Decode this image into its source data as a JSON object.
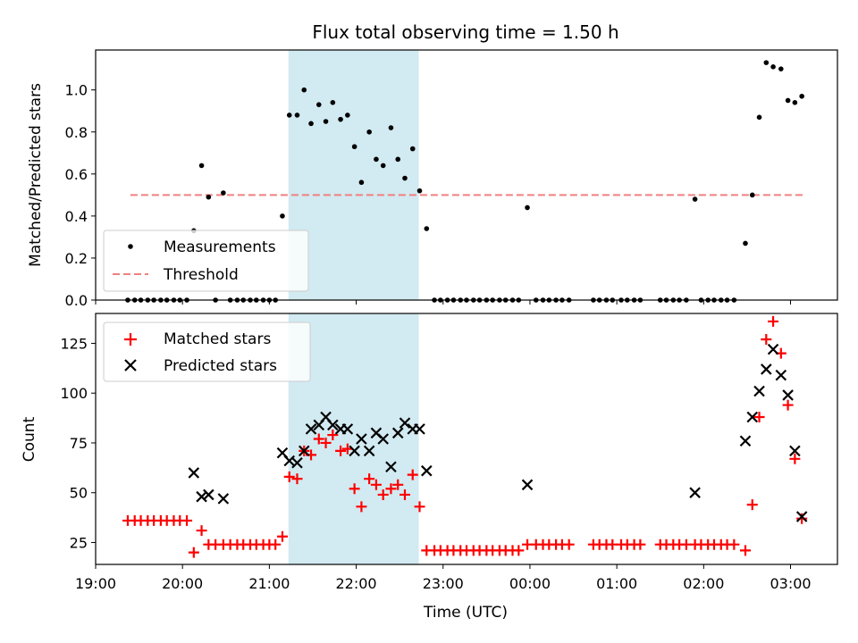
{
  "chart_data": [
    {
      "type": "scatter",
      "title": "Flux total observing time = 1.50 h",
      "ylabel": "Matched/Predicted stars",
      "xlabel": "",
      "ylim": [
        0,
        1.19
      ],
      "yticks": [
        "0.0",
        "0.2",
        "0.4",
        "0.6",
        "0.8",
        "1.0"
      ],
      "ytick_values": [
        0,
        0.2,
        0.4,
        0.6,
        0.8,
        1.0
      ],
      "xlim_hours": [
        19.0,
        27.54
      ],
      "shaded_interval_hours": [
        21.22,
        22.72
      ],
      "threshold": {
        "value": 0.5,
        "from_hours": 19.4,
        "to_hours": 27.15,
        "color": "#f08080"
      },
      "legend": [
        "Measurements",
        "Threshold"
      ],
      "legend_position": "lower-left",
      "series": [
        {
          "name": "Measurements",
          "color": "#000000",
          "points": [
            [
              19.37,
              0
            ],
            [
              19.45,
              0
            ],
            [
              19.52,
              0
            ],
            [
              19.6,
              0
            ],
            [
              19.67,
              0
            ],
            [
              19.75,
              0
            ],
            [
              19.82,
              0
            ],
            [
              19.9,
              0
            ],
            [
              19.97,
              0
            ],
            [
              20.05,
              0
            ],
            [
              20.13,
              0.33
            ],
            [
              20.22,
              0.64
            ],
            [
              20.3,
              0.49
            ],
            [
              20.38,
              0
            ],
            [
              20.47,
              0.51
            ],
            [
              20.55,
              0
            ],
            [
              20.63,
              0
            ],
            [
              20.7,
              0
            ],
            [
              20.78,
              0
            ],
            [
              20.85,
              0
            ],
            [
              20.93,
              0
            ],
            [
              21.0,
              0
            ],
            [
              21.07,
              0
            ],
            [
              21.15,
              0.4
            ],
            [
              21.23,
              0.88
            ],
            [
              21.32,
              0.88
            ],
            [
              21.4,
              1.0
            ],
            [
              21.48,
              0.84
            ],
            [
              21.57,
              0.93
            ],
            [
              21.65,
              0.85
            ],
            [
              21.73,
              0.94
            ],
            [
              21.82,
              0.86
            ],
            [
              21.9,
              0.88
            ],
            [
              21.98,
              0.73
            ],
            [
              22.06,
              0.56
            ],
            [
              22.15,
              0.8
            ],
            [
              22.23,
              0.67
            ],
            [
              22.31,
              0.64
            ],
            [
              22.4,
              0.82
            ],
            [
              22.48,
              0.67
            ],
            [
              22.56,
              0.58
            ],
            [
              22.65,
              0.72
            ],
            [
              22.73,
              0.52
            ],
            [
              22.81,
              0.34
            ],
            [
              22.9,
              0
            ],
            [
              22.97,
              0
            ],
            [
              23.05,
              0
            ],
            [
              23.12,
              0
            ],
            [
              23.2,
              0
            ],
            [
              23.27,
              0
            ],
            [
              23.35,
              0
            ],
            [
              23.42,
              0
            ],
            [
              23.5,
              0
            ],
            [
              23.57,
              0
            ],
            [
              23.65,
              0
            ],
            [
              23.72,
              0
            ],
            [
              23.8,
              0
            ],
            [
              23.87,
              0
            ],
            [
              23.97,
              0.44
            ],
            [
              24.07,
              0
            ],
            [
              24.15,
              0
            ],
            [
              24.22,
              0
            ],
            [
              24.3,
              0
            ],
            [
              24.37,
              0
            ],
            [
              24.45,
              0
            ],
            [
              24.73,
              0
            ],
            [
              24.8,
              0
            ],
            [
              24.88,
              0
            ],
            [
              24.95,
              0
            ],
            [
              25.05,
              0
            ],
            [
              25.12,
              0
            ],
            [
              25.2,
              0
            ],
            [
              25.27,
              0
            ],
            [
              25.5,
              0
            ],
            [
              25.57,
              0
            ],
            [
              25.65,
              0
            ],
            [
              25.72,
              0
            ],
            [
              25.8,
              0
            ],
            [
              25.9,
              0.48
            ],
            [
              25.97,
              0
            ],
            [
              26.05,
              0
            ],
            [
              26.12,
              0
            ],
            [
              26.2,
              0
            ],
            [
              26.27,
              0
            ],
            [
              26.35,
              0
            ],
            [
              26.48,
              0.27
            ],
            [
              26.56,
              0.5
            ],
            [
              26.64,
              0.87
            ],
            [
              26.72,
              1.13
            ],
            [
              26.8,
              1.11
            ],
            [
              26.89,
              1.1
            ],
            [
              26.97,
              0.95
            ],
            [
              27.05,
              0.94
            ],
            [
              27.13,
              0.97
            ]
          ]
        }
      ]
    },
    {
      "type": "scatter",
      "title": "",
      "ylabel": "Count",
      "xlabel": "Time (UTC)",
      "ylim": [
        14,
        140
      ],
      "yticks": [
        "25",
        "50",
        "75",
        "100",
        "125"
      ],
      "ytick_values": [
        25,
        50,
        75,
        100,
        125
      ],
      "xlim_hours": [
        19.0,
        27.54
      ],
      "xticks": [
        "19:00",
        "20:00",
        "21:00",
        "22:00",
        "23:00",
        "00:00",
        "01:00",
        "02:00",
        "03:00"
      ],
      "xtick_values": [
        19,
        20,
        21,
        22,
        23,
        24,
        25,
        26,
        27
      ],
      "shaded_interval_hours": [
        21.22,
        22.72
      ],
      "legend": [
        "Matched stars",
        "Predicted stars"
      ],
      "legend_position": "upper-left",
      "series": [
        {
          "name": "Matched stars",
          "marker": "plus",
          "color": "#ff0000",
          "points": [
            [
              19.37,
              36
            ],
            [
              19.45,
              36
            ],
            [
              19.52,
              36
            ],
            [
              19.6,
              36
            ],
            [
              19.67,
              36
            ],
            [
              19.75,
              36
            ],
            [
              19.82,
              36
            ],
            [
              19.9,
              36
            ],
            [
              19.97,
              36
            ],
            [
              20.05,
              36
            ],
            [
              20.13,
              20
            ],
            [
              20.22,
              31
            ],
            [
              20.3,
              24
            ],
            [
              20.38,
              24
            ],
            [
              20.47,
              24
            ],
            [
              20.55,
              24
            ],
            [
              20.63,
              24
            ],
            [
              20.7,
              24
            ],
            [
              20.78,
              24
            ],
            [
              20.85,
              24
            ],
            [
              20.93,
              24
            ],
            [
              21.0,
              24
            ],
            [
              21.07,
              24
            ],
            [
              21.15,
              28
            ],
            [
              21.23,
              58
            ],
            [
              21.32,
              57
            ],
            [
              21.4,
              71
            ],
            [
              21.48,
              69
            ],
            [
              21.57,
              77
            ],
            [
              21.65,
              75
            ],
            [
              21.73,
              79
            ],
            [
              21.82,
              71
            ],
            [
              21.9,
              72
            ],
            [
              21.98,
              52
            ],
            [
              22.06,
              43
            ],
            [
              22.15,
              57
            ],
            [
              22.23,
              54
            ],
            [
              22.31,
              49
            ],
            [
              22.4,
              52
            ],
            [
              22.48,
              54
            ],
            [
              22.56,
              49
            ],
            [
              22.65,
              59
            ],
            [
              22.73,
              43
            ],
            [
              22.81,
              21
            ],
            [
              22.9,
              21
            ],
            [
              22.97,
              21
            ],
            [
              23.05,
              21
            ],
            [
              23.12,
              21
            ],
            [
              23.2,
              21
            ],
            [
              23.27,
              21
            ],
            [
              23.35,
              21
            ],
            [
              23.42,
              21
            ],
            [
              23.5,
              21
            ],
            [
              23.57,
              21
            ],
            [
              23.65,
              21
            ],
            [
              23.72,
              21
            ],
            [
              23.8,
              21
            ],
            [
              23.87,
              21
            ],
            [
              23.97,
              24
            ],
            [
              24.07,
              24
            ],
            [
              24.15,
              24
            ],
            [
              24.22,
              24
            ],
            [
              24.3,
              24
            ],
            [
              24.37,
              24
            ],
            [
              24.45,
              24
            ],
            [
              24.73,
              24
            ],
            [
              24.8,
              24
            ],
            [
              24.88,
              24
            ],
            [
              24.95,
              24
            ],
            [
              25.05,
              24
            ],
            [
              25.12,
              24
            ],
            [
              25.2,
              24
            ],
            [
              25.27,
              24
            ],
            [
              25.5,
              24
            ],
            [
              25.57,
              24
            ],
            [
              25.65,
              24
            ],
            [
              25.72,
              24
            ],
            [
              25.8,
              24
            ],
            [
              25.9,
              24
            ],
            [
              25.97,
              24
            ],
            [
              26.05,
              24
            ],
            [
              26.12,
              24
            ],
            [
              26.2,
              24
            ],
            [
              26.27,
              24
            ],
            [
              26.35,
              24
            ],
            [
              26.48,
              21
            ],
            [
              26.56,
              44
            ],
            [
              26.64,
              88
            ],
            [
              26.72,
              127
            ],
            [
              26.8,
              136
            ],
            [
              26.89,
              120
            ],
            [
              26.97,
              94
            ],
            [
              27.05,
              67
            ],
            [
              27.13,
              37
            ]
          ]
        },
        {
          "name": "Predicted stars",
          "marker": "x",
          "color": "#000000",
          "points": [
            [
              20.13,
              60
            ],
            [
              20.22,
              48
            ],
            [
              20.3,
              49
            ],
            [
              20.47,
              47
            ],
            [
              21.15,
              70
            ],
            [
              21.23,
              66
            ],
            [
              21.32,
              65
            ],
            [
              21.4,
              71
            ],
            [
              21.48,
              82
            ],
            [
              21.57,
              84
            ],
            [
              21.65,
              88
            ],
            [
              21.73,
              84
            ],
            [
              21.82,
              82
            ],
            [
              21.9,
              82
            ],
            [
              21.98,
              71
            ],
            [
              22.06,
              77
            ],
            [
              22.15,
              71
            ],
            [
              22.23,
              80
            ],
            [
              22.31,
              77
            ],
            [
              22.4,
              63
            ],
            [
              22.48,
              80
            ],
            [
              22.56,
              85
            ],
            [
              22.65,
              82
            ],
            [
              22.73,
              82
            ],
            [
              22.81,
              61
            ],
            [
              23.97,
              54
            ],
            [
              25.9,
              50
            ],
            [
              26.48,
              76
            ],
            [
              26.56,
              88
            ],
            [
              26.64,
              101
            ],
            [
              26.72,
              112
            ],
            [
              26.8,
              122
            ],
            [
              26.89,
              109
            ],
            [
              26.97,
              99
            ],
            [
              27.05,
              71
            ],
            [
              27.13,
              38
            ]
          ]
        }
      ]
    }
  ]
}
